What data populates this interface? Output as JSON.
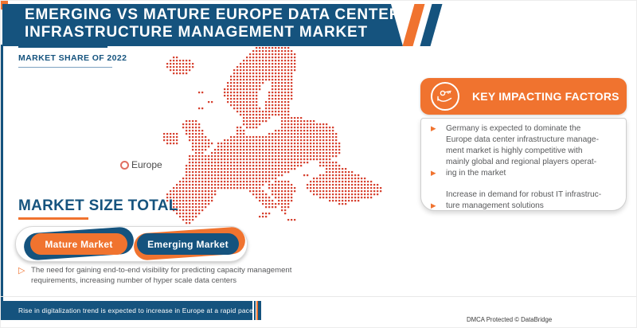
{
  "colors": {
    "blue": "#15537E",
    "orange": "#F0732F",
    "map_red": "#D6402E",
    "text_gray": "#58595B"
  },
  "header": {
    "title_line1": "EMERGING VS MATURE EUROPE DATA CENTER",
    "title_line2": "INFRASTRUCTURE MANAGEMENT MARKET",
    "subtitle": "MARKET SHARE OF 2022"
  },
  "map": {
    "region_label": "Europe",
    "grid": {
      "pitch": 4,
      "dot": 2.3
    },
    "rows": [
      [
        [
          30,
          40
        ]
      ],
      [
        [
          29,
          41
        ]
      ],
      [
        [
          28,
          42
        ]
      ],
      [
        [
          4,
          5
        ],
        [
          27,
          42
        ]
      ],
      [
        [
          3,
          9
        ],
        [
          26,
          42
        ]
      ],
      [
        [
          2,
          10
        ],
        [
          25,
          42
        ]
      ],
      [
        [
          2,
          10
        ],
        [
          24,
          42
        ]
      ],
      [
        [
          3,
          9
        ],
        [
          23,
          42
        ]
      ],
      [
        [
          4,
          8
        ],
        [
          23,
          41
        ]
      ],
      [
        [
          22,
          41
        ]
      ],
      [
        [
          22,
          41
        ]
      ],
      [
        [
          21,
          32
        ],
        [
          35,
          41
        ]
      ],
      [
        [
          21,
          31
        ],
        [
          35,
          41
        ]
      ],
      [
        [
          20,
          31
        ],
        [
          35,
          41
        ]
      ],
      [
        [
          12,
          13
        ],
        [
          20,
          30
        ],
        [
          34,
          41
        ]
      ],
      [
        [
          20,
          30
        ],
        [
          34,
          41
        ]
      ],
      [
        [
          21,
          30
        ],
        [
          34,
          41
        ]
      ],
      [
        [
          15,
          16
        ],
        [
          21,
          30
        ],
        [
          33,
          40
        ]
      ],
      [
        [
          22,
          30
        ],
        [
          33,
          40
        ]
      ],
      [
        [
          12,
          13
        ],
        [
          23,
          31
        ],
        [
          33,
          40
        ]
      ],
      [
        [
          24,
          40
        ]
      ],
      [
        [
          25,
          40
        ]
      ],
      [
        [
          26,
          34
        ],
        [
          38,
          44
        ]
      ],
      [
        [
          8,
          11
        ],
        [
          26,
          33
        ],
        [
          38,
          48
        ]
      ],
      [
        [
          7,
          12
        ],
        [
          26,
          31
        ],
        [
          38,
          52
        ]
      ],
      [
        [
          7,
          12
        ],
        [
          24,
          25
        ],
        [
          27,
          30
        ],
        [
          38,
          54
        ]
      ],
      [
        [
          8,
          13
        ],
        [
          24,
          26
        ],
        [
          36,
          54
        ]
      ],
      [
        [
          1,
          5
        ],
        [
          8,
          13
        ],
        [
          24,
          26
        ],
        [
          34,
          55
        ]
      ],
      [
        [
          1,
          5
        ],
        [
          9,
          14
        ],
        [
          22,
          55
        ]
      ],
      [
        [
          1,
          5
        ],
        [
          9,
          15
        ],
        [
          20,
          55
        ]
      ],
      [
        [
          2,
          5
        ],
        [
          10,
          16
        ],
        [
          18,
          56
        ]
      ],
      [
        [
          10,
          15
        ],
        [
          18,
          56
        ]
      ],
      [
        [
          10,
          14
        ],
        [
          17,
          56
        ]
      ],
      [
        [
          11,
          13
        ],
        [
          16,
          56
        ]
      ],
      [
        [
          9,
          55
        ]
      ],
      [
        [
          9,
          53
        ]
      ],
      [
        [
          9,
          46
        ],
        [
          50,
          55
        ]
      ],
      [
        [
          8,
          44
        ],
        [
          50,
          56
        ]
      ],
      [
        [
          8,
          42
        ],
        [
          52,
          58
        ]
      ],
      [
        [
          8,
          40
        ],
        [
          52,
          60
        ]
      ],
      [
        [
          8,
          38
        ],
        [
          45,
          46
        ],
        [
          50,
          62
        ]
      ],
      [
        [
          7,
          36
        ],
        [
          48,
          64
        ]
      ],
      [
        [
          6,
          34
        ],
        [
          36,
          40
        ],
        [
          47,
          66
        ]
      ],
      [
        [
          5,
          32
        ],
        [
          34,
          41
        ],
        [
          46,
          68
        ]
      ],
      [
        [
          4,
          31
        ],
        [
          34,
          42
        ],
        [
          46,
          69
        ]
      ],
      [
        [
          3,
          17
        ],
        [
          28,
          32
        ],
        [
          35,
          42
        ],
        [
          47,
          69
        ]
      ],
      [
        [
          2,
          17
        ],
        [
          29,
          33
        ],
        [
          35,
          41
        ],
        [
          48,
          68
        ]
      ],
      [
        [
          2,
          16
        ],
        [
          30,
          34
        ],
        [
          36,
          41
        ],
        [
          50,
          66
        ]
      ],
      [
        [
          2,
          16
        ],
        [
          31,
          35
        ],
        [
          37,
          41
        ],
        [
          53,
          62
        ]
      ],
      [
        [
          3,
          15
        ],
        [
          32,
          36
        ],
        [
          37,
          40
        ],
        [
          56,
          58
        ]
      ],
      [
        [
          3,
          14
        ],
        [
          33,
          36
        ],
        [
          38,
          40
        ]
      ],
      [
        [
          4,
          13
        ],
        [
          38,
          39
        ]
      ],
      [
        [
          5,
          12
        ],
        [
          32,
          34
        ],
        [
          39,
          39
        ]
      ],
      [
        [
          6,
          11
        ],
        [
          31,
          33
        ]
      ],
      [
        [
          7,
          10
        ],
        [
          40,
          42
        ]
      ],
      [
        [
          8,
          9
        ]
      ]
    ]
  },
  "market_size": {
    "title": "MARKET SIZE TOTAL",
    "buttons": [
      {
        "label": "Mature Market"
      },
      {
        "label": "Emerging Market"
      }
    ],
    "note": "The need for gaining end-to-end visibility for predicting capacity management requirements, increasing number of hyper scale data centers",
    "note_bullet_icon": "▷"
  },
  "key_factors": {
    "title": "KEY IMPACTING FACTORS",
    "icon": "hand-holding-key",
    "bullet_icon": "▶",
    "lines": [
      {
        "bullet": true,
        "text": "Germany is expected to dominate the"
      },
      {
        "bullet": false,
        "text": "Europe data center infrastructure manage-"
      },
      {
        "bullet": false,
        "text": "ment market is highly competitive with"
      },
      {
        "bullet": false,
        "text": "mainly global and regional players operat-"
      },
      {
        "bullet": true,
        "text": "ing in the market"
      },
      {
        "bullet": false,
        "text": ""
      },
      {
        "bullet": false,
        "text": "Increase in demand for robust IT infrastruc-"
      },
      {
        "bullet": true,
        "text": "ture management solutions"
      }
    ]
  },
  "bottom_bar": {
    "text": "Rise in digitalization trend is expected to increase in Europe at a rapid pace."
  },
  "footer": {
    "dmca": "DMCA Protected © DataBridge"
  }
}
